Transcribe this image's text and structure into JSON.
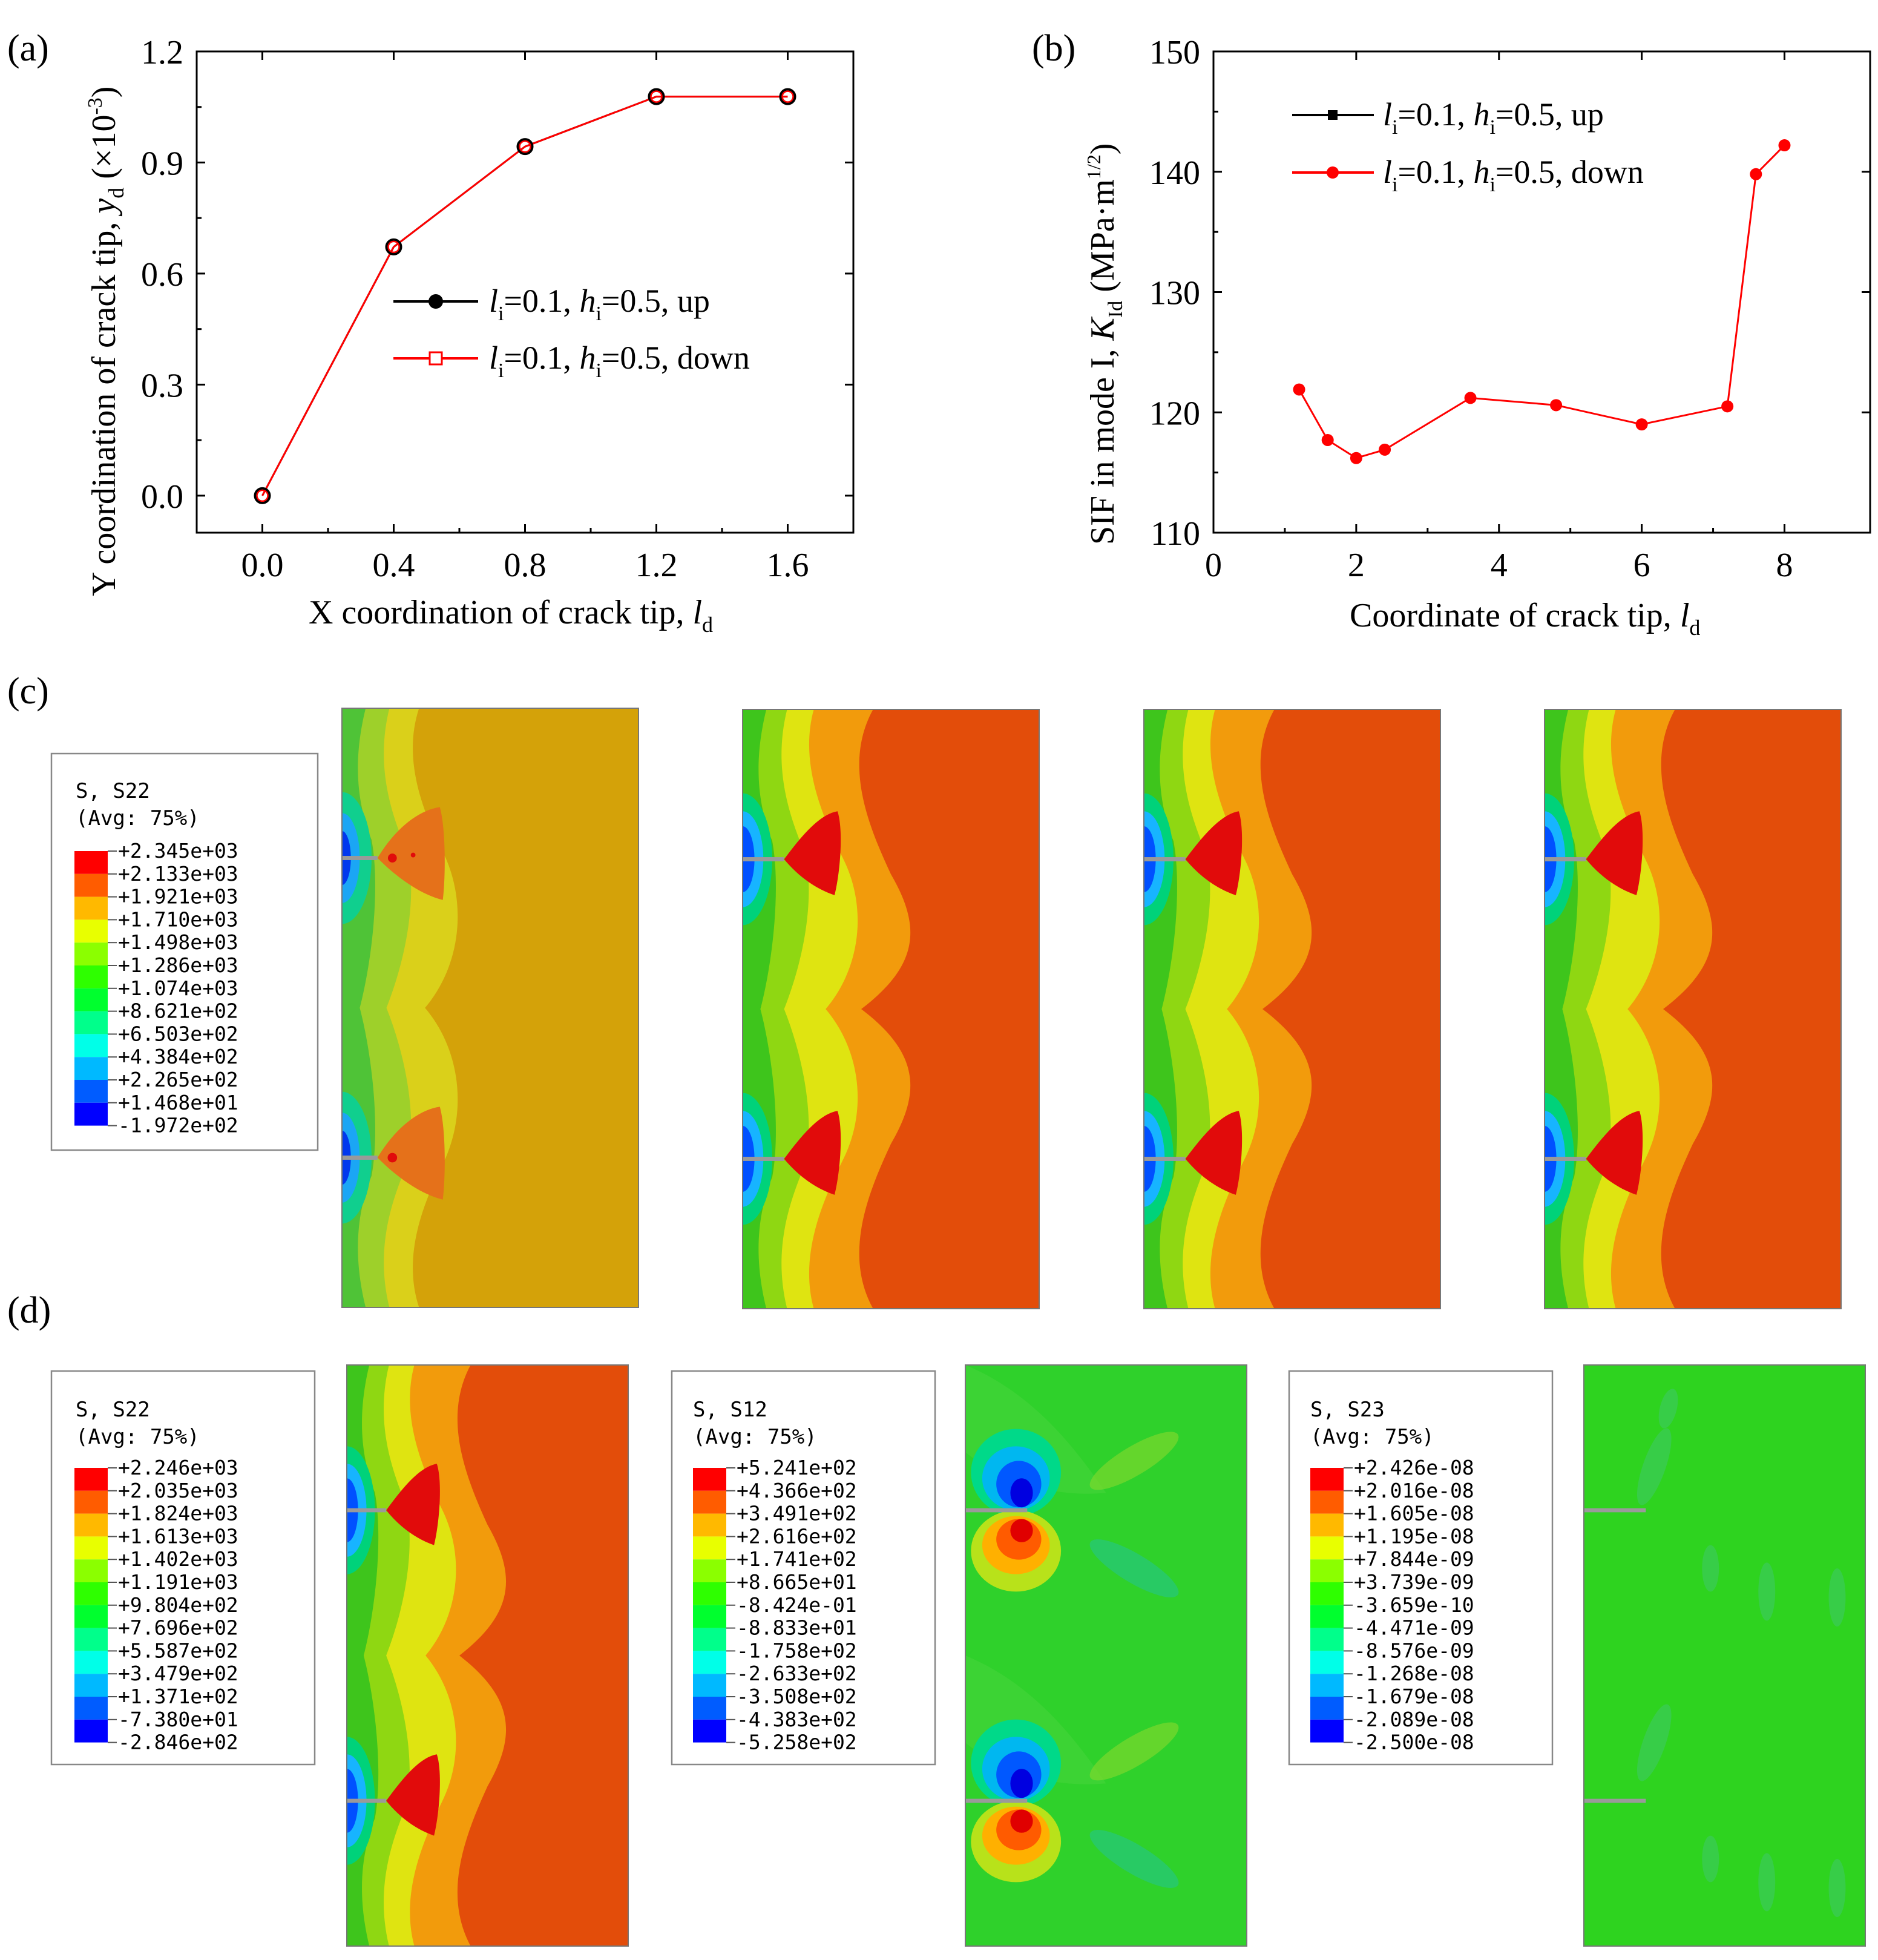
{
  "panel_labels": {
    "a": "(a)",
    "b": "(b)",
    "c": "(c)",
    "d": "(d)"
  },
  "colors": {
    "contour": [
      "#0000ff",
      "#005cff",
      "#00b9ff",
      "#00ffe8",
      "#00ff8b",
      "#00ff2e",
      "#2eff00",
      "#8bff00",
      "#e8ff00",
      "#ffb900",
      "#ff5c00",
      "#ff0000"
    ]
  },
  "chart_data": [
    {
      "id": "a",
      "type": "line",
      "xlabel": "X coordination of crack tip, ",
      "xlabel_var": "l",
      "xlabel_sub": "d",
      "ylabel": "Y coordination of crack tip, ",
      "ylabel_var": "y",
      "ylabel_sub": "d",
      "ylabel_unit": " (×10",
      "ylabel_exp": "-3",
      "ylabel_close": ")",
      "xlim": [
        -0.2,
        1.8
      ],
      "ylim": [
        -0.1,
        1.2
      ],
      "xticks": [
        "0.0",
        "0.4",
        "0.8",
        "1.2",
        "1.6"
      ],
      "xtick_values": [
        0.0,
        0.4,
        0.8,
        1.2,
        1.6
      ],
      "yticks": [
        "0.0",
        "0.3",
        "0.6",
        "0.9",
        "1.2"
      ],
      "ytick_values": [
        0.0,
        0.3,
        0.6,
        0.9,
        1.2
      ],
      "series": [
        {
          "name": "up",
          "color": "#000000",
          "marker": "filled-circle",
          "x": [
            0.0,
            0.4,
            0.8,
            1.2,
            1.6
          ],
          "y": [
            0.0,
            0.672,
            0.943,
            1.078,
            1.078
          ]
        },
        {
          "name": "down",
          "color": "#ff0000",
          "marker": "open-square",
          "x": [
            0.0,
            0.4,
            0.8,
            1.2,
            1.6
          ],
          "y": [
            0.0,
            0.672,
            0.943,
            1.078,
            1.078
          ]
        }
      ],
      "legend": [
        {
          "l": "l",
          "i": "i",
          "eq1": "=0.1, ",
          "h": "h",
          "i2": "i",
          "eq2": "=0.5, up"
        },
        {
          "l": "l",
          "i": "i",
          "eq1": "=0.1, ",
          "h": "h",
          "i2": "i",
          "eq2": "=0.5, down"
        }
      ]
    },
    {
      "id": "b",
      "type": "line",
      "xlabel": "Coordinate of crack tip, ",
      "xlabel_var": "l",
      "xlabel_sub": "d",
      "ylabel": "SIF in mode I, ",
      "ylabel_var": "K",
      "ylabel_sub": "Id",
      "ylabel_unit": "  (MPa·m",
      "ylabel_exp": "1/2",
      "ylabel_close": ")",
      "xlim": [
        0,
        9.2
      ],
      "ylim": [
        110,
        150
      ],
      "xticks": [
        "0",
        "2",
        "4",
        "6",
        "8"
      ],
      "xtick_values": [
        0,
        2,
        4,
        6,
        8
      ],
      "yticks": [
        "110",
        "120",
        "130",
        "140",
        "150"
      ],
      "ytick_values": [
        110,
        120,
        130,
        140,
        150
      ],
      "series": [
        {
          "name": "up",
          "color": "#000000",
          "marker": "filled-square",
          "x": [],
          "y": []
        },
        {
          "name": "down",
          "color": "#ff0000",
          "marker": "filled-circle",
          "x": [
            1.2,
            1.6,
            2.0,
            2.4,
            3.6,
            4.8,
            6.0,
            7.2,
            7.6,
            8.0
          ],
          "y": [
            121.9,
            117.7,
            116.2,
            116.9,
            121.2,
            120.6,
            119.0,
            120.5,
            139.8,
            142.2
          ]
        }
      ],
      "legend": [
        {
          "l": "l",
          "i": "i",
          "eq1": "=0.1, ",
          "h": "h",
          "i2": "i",
          "eq2": "=0.5, up"
        },
        {
          "l": "l",
          "i": "i",
          "eq1": "=0.1, ",
          "h": "h",
          "i2": "i",
          "eq2": "=0.5, down"
        }
      ]
    }
  ],
  "legends": {
    "c_s22": {
      "title1": "S, S22",
      "title2": "(Avg: 75%)",
      "values": [
        "+2.345e+03",
        "+2.133e+03",
        "+1.921e+03",
        "+1.710e+03",
        "+1.498e+03",
        "+1.286e+03",
        "+1.074e+03",
        "+8.621e+02",
        "+6.503e+02",
        "+4.384e+02",
        "+2.265e+02",
        "+1.468e+01",
        "-1.972e+02"
      ]
    },
    "d_s22": {
      "title1": "S, S22",
      "title2": "(Avg: 75%)",
      "values": [
        "+2.246e+03",
        "+2.035e+03",
        "+1.824e+03",
        "+1.613e+03",
        "+1.402e+03",
        "+1.191e+03",
        "+9.804e+02",
        "+7.696e+02",
        "+5.587e+02",
        "+3.479e+02",
        "+1.371e+02",
        "-7.380e+01",
        "-2.846e+02"
      ]
    },
    "d_s12": {
      "title1": "S, S12",
      "title2": "(Avg: 75%)",
      "values": [
        "+5.241e+02",
        "+4.366e+02",
        "+3.491e+02",
        "+2.616e+02",
        "+1.741e+02",
        "+8.665e+01",
        "-8.424e-01",
        "-8.833e+01",
        "-1.758e+02",
        "-2.633e+02",
        "-3.508e+02",
        "-4.383e+02",
        "-5.258e+02"
      ]
    },
    "d_s23": {
      "title1": "S, S23",
      "title2": "(Avg: 75%)",
      "values": [
        "+2.426e-08",
        "+2.016e-08",
        "+1.605e-08",
        "+1.195e-08",
        "+7.844e-09",
        "+3.739e-09",
        "-3.659e-10",
        "-4.471e-09",
        "-8.576e-09",
        "-1.268e-08",
        "-1.679e-08",
        "-2.089e-08",
        "-2.500e-08"
      ]
    }
  }
}
